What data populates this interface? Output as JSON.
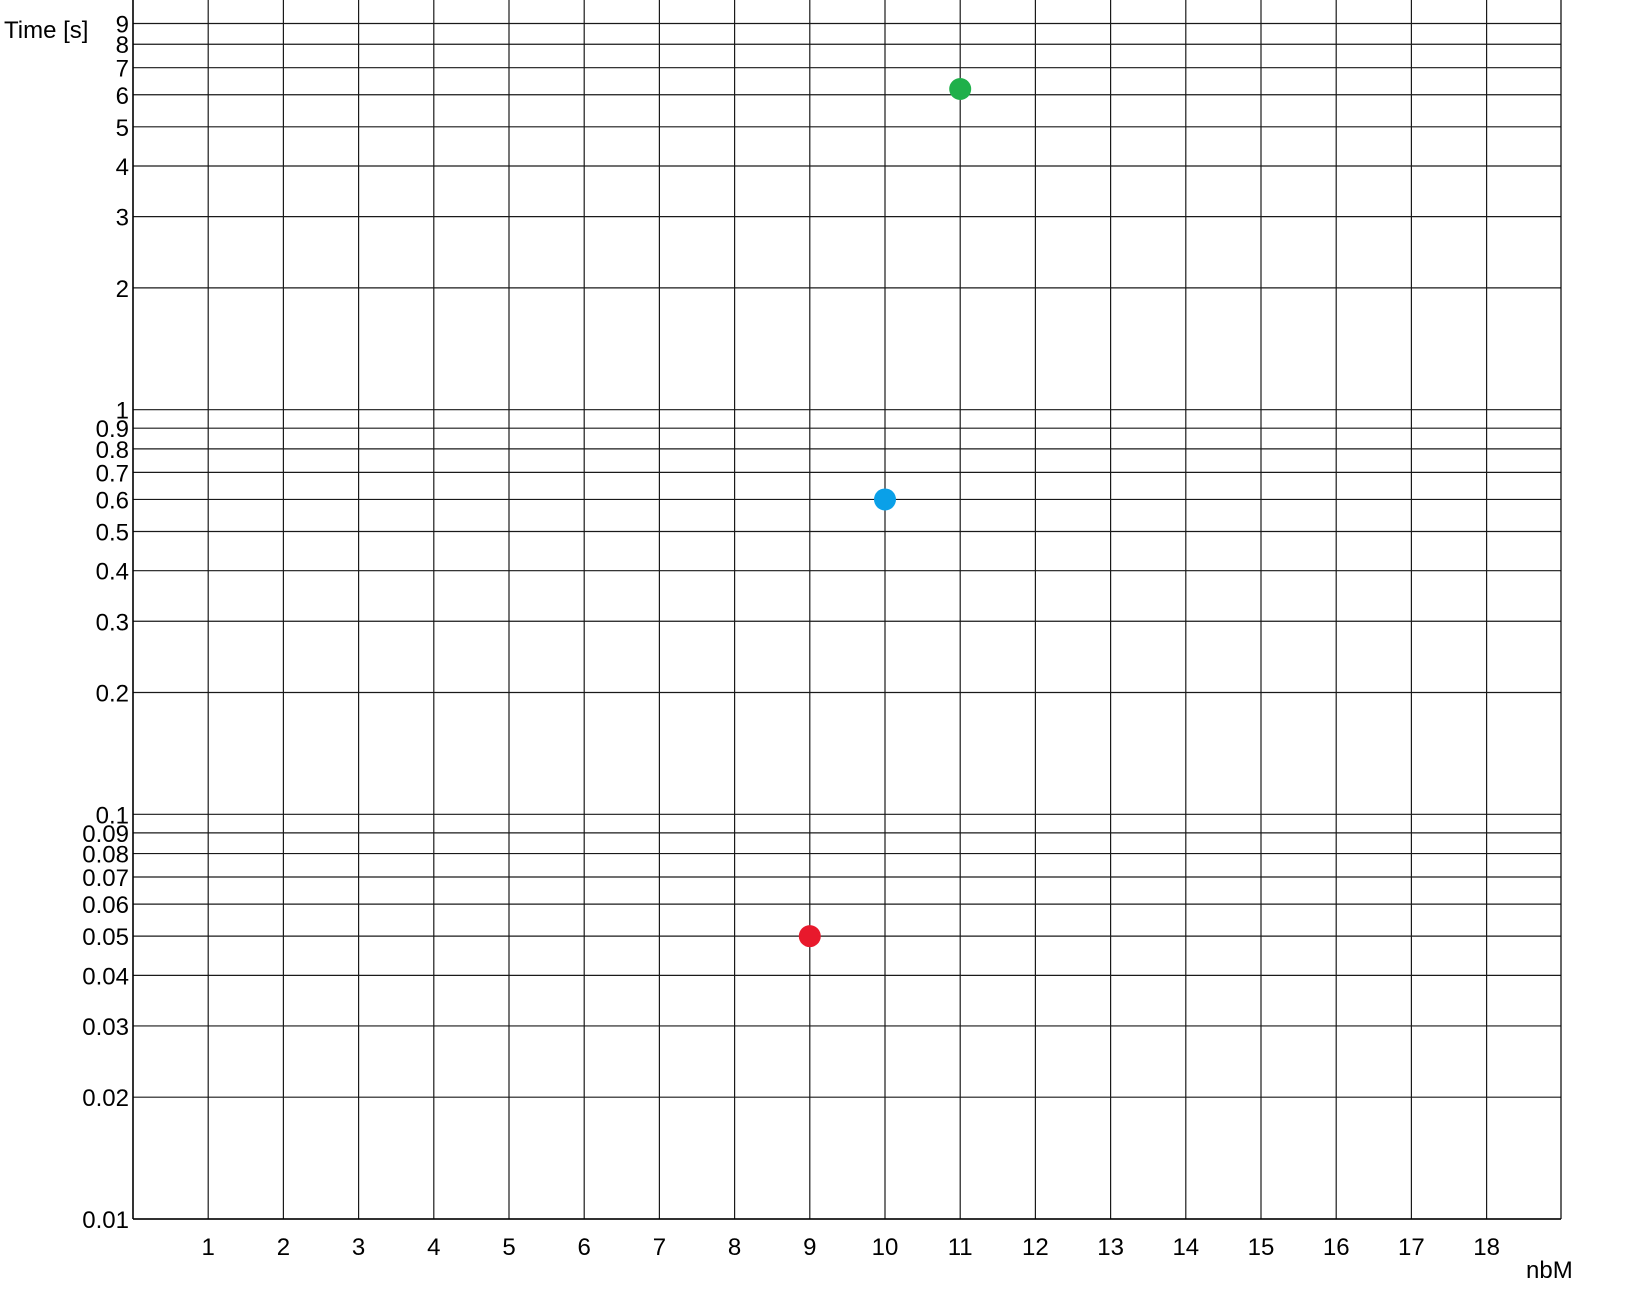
{
  "chart_data": {
    "type": "scatter",
    "title": "",
    "xlabel": "nbM",
    "ylabel": "Time [s]",
    "yscale": "log",
    "xlim": [
      0,
      18
    ],
    "ylim": [
      0.01,
      10
    ],
    "grid": true,
    "x_ticks": [
      1,
      2,
      3,
      4,
      5,
      6,
      7,
      8,
      9,
      10,
      11,
      12,
      13,
      14,
      15,
      16,
      17,
      18
    ],
    "y_ticks": [
      0.01,
      0.02,
      0.03,
      0.04,
      0.05,
      0.06,
      0.07,
      0.08,
      0.09,
      0.1,
      0.2,
      0.3,
      0.4,
      0.5,
      0.6,
      0.7,
      0.8,
      0.9,
      1,
      2,
      3,
      4,
      5,
      6,
      7,
      8,
      9
    ],
    "y_tick_labels": [
      "0.01",
      "0.02",
      "0.03",
      "0.04",
      "0.05",
      "0.06",
      "0.07",
      "0.08",
      "0.09",
      "0.1",
      "0.2",
      "0.3",
      "0.4",
      "0.5",
      "0.6",
      "0.7",
      "0.8",
      "0.9",
      "1",
      "2",
      "3",
      "4",
      "5",
      "6",
      "7",
      "8",
      "9"
    ],
    "points": [
      {
        "x": 9,
        "y": 0.05,
        "color": "#e8192c"
      },
      {
        "x": 10,
        "y": 0.6,
        "color": "#0aa0e8"
      },
      {
        "x": 11,
        "y": 6.2,
        "color": "#1fb04a"
      }
    ]
  }
}
